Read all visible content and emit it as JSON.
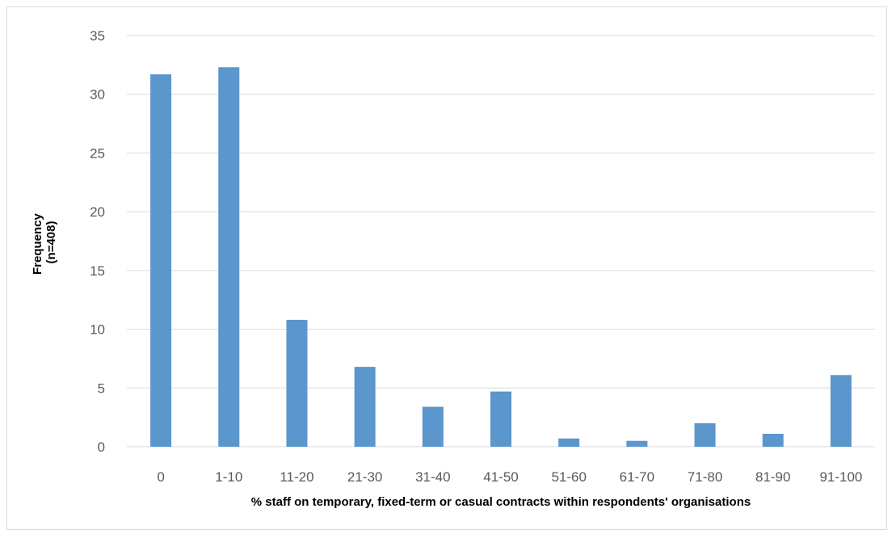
{
  "chart_data": {
    "type": "bar",
    "categories": [
      "0",
      "1-10",
      "11-20",
      "21-30",
      "31-40",
      "41-50",
      "51-60",
      "61-70",
      "71-80",
      "81-90",
      "91-100"
    ],
    "values": [
      31.7,
      32.3,
      10.8,
      6.8,
      3.4,
      4.7,
      0.7,
      0.5,
      2.0,
      1.1,
      6.1
    ],
    "title": "",
    "xlabel": "% staff on temporary, fixed-term or casual contracts within respondents' organisations",
    "ylabel_lines": [
      "Frequency",
      "(n=408)"
    ],
    "ylim": [
      0,
      35
    ],
    "yticks": [
      0,
      5,
      10,
      15,
      20,
      25,
      30,
      35
    ],
    "grid": true,
    "legend": "none",
    "bar_color": "#5b96cc",
    "grid_color": "#d9d9d9"
  }
}
